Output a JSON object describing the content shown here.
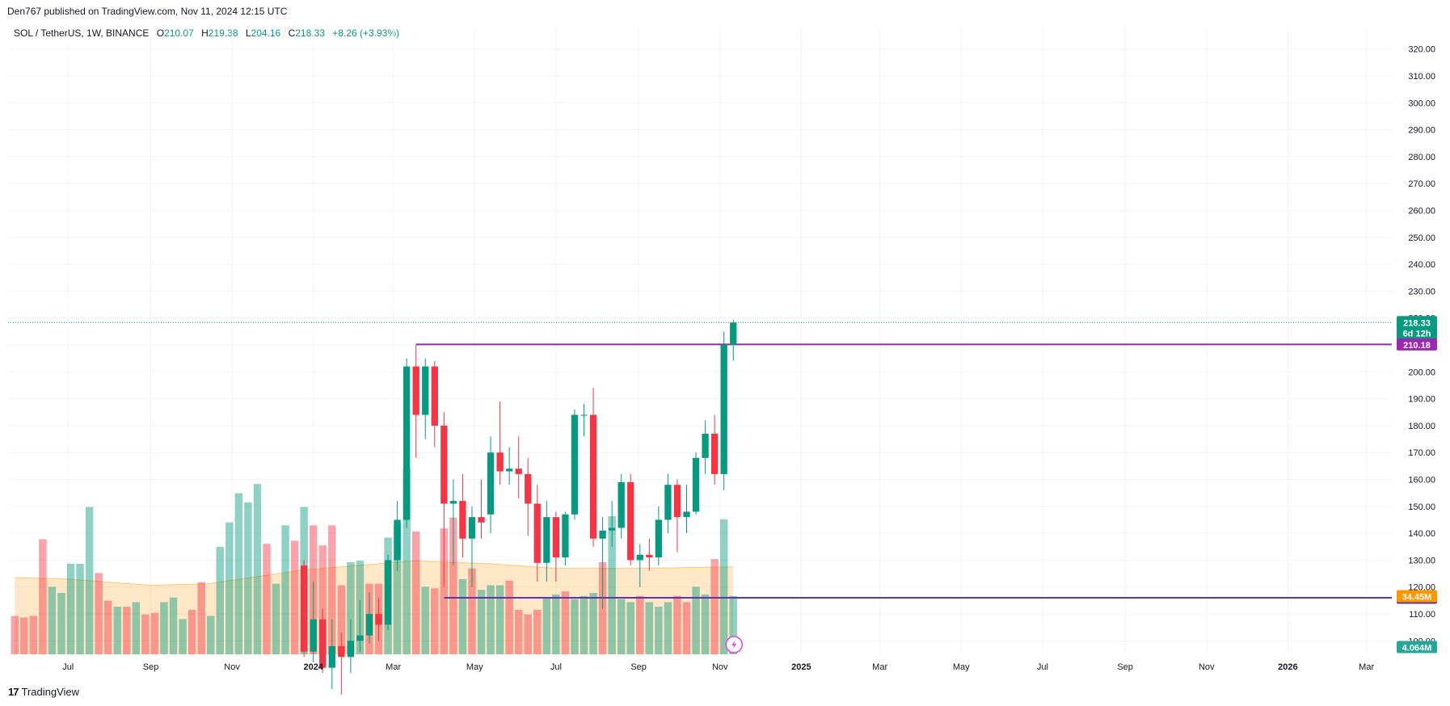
{
  "header": {
    "published": "Den767 published on TradingView.com, Nov 11, 2024 12:15 UTC"
  },
  "legend": {
    "symbol": "SOL / TetherUS, 1W, BINANCE",
    "open_label": "O",
    "open": "210.07",
    "high_label": "H",
    "high": "219.38",
    "low_label": "L",
    "low": "204.16",
    "close_label": "C",
    "close": "218.33",
    "change": "+8.26 (+3.93%)"
  },
  "footer": {
    "brand": "TradingView",
    "logo_glyph": "17"
  },
  "colors": {
    "up": "#089981",
    "down": "#f23645",
    "level_high": "#9c27b0",
    "level_low": "#5e35b1",
    "grid": "#f0f3fa",
    "volume_ma": "#ff9800"
  },
  "chart_data": {
    "type": "candlestick",
    "title": "SOL / TetherUS, 1W, BINANCE",
    "x_ticks": [
      {
        "date": "2023-07-01",
        "label": "Jul",
        "bold": false
      },
      {
        "date": "2023-09-01",
        "label": "Sep",
        "bold": false
      },
      {
        "date": "2023-11-01",
        "label": "Nov",
        "bold": false
      },
      {
        "date": "2024-01-01",
        "label": "2024",
        "bold": true
      },
      {
        "date": "2024-03-01",
        "label": "Mar",
        "bold": false
      },
      {
        "date": "2024-05-01",
        "label": "May",
        "bold": false
      },
      {
        "date": "2024-07-01",
        "label": "Jul",
        "bold": false
      },
      {
        "date": "2024-09-01",
        "label": "Sep",
        "bold": false
      },
      {
        "date": "2024-11-01",
        "label": "Nov",
        "bold": false
      },
      {
        "date": "2025-01-01",
        "label": "2025",
        "bold": true
      },
      {
        "date": "2025-03-01",
        "label": "Mar",
        "bold": false
      },
      {
        "date": "2025-05-01",
        "label": "May",
        "bold": false
      },
      {
        "date": "2025-07-01",
        "label": "Jul",
        "bold": false
      },
      {
        "date": "2025-09-01",
        "label": "Sep",
        "bold": false
      },
      {
        "date": "2025-11-01",
        "label": "Nov",
        "bold": false
      },
      {
        "date": "2026-01-01",
        "label": "2026",
        "bold": true
      },
      {
        "date": "2026-03-01",
        "label": "Mar",
        "bold": false
      }
    ],
    "y_ticks": [
      "100.00",
      "110.00",
      "120.00",
      "130.00",
      "140.00",
      "150.00",
      "160.00",
      "170.00",
      "180.00",
      "190.00",
      "200.00",
      "210.00",
      "220.00",
      "230.00",
      "240.00",
      "250.00",
      "260.00",
      "270.00",
      "280.00",
      "290.00",
      "300.00",
      "310.00",
      "320.00"
    ],
    "ylim": [
      95,
      325
    ],
    "xlim": [
      "2023-05-17",
      "2026-03-20"
    ],
    "candles": [
      {
        "d": "2023-12-25",
        "o": 128,
        "h": 130,
        "l": 94,
        "c": 96
      },
      {
        "d": "2024-01-01",
        "o": 96,
        "h": 122,
        "l": 92,
        "c": 108
      },
      {
        "d": "2024-01-08",
        "o": 108,
        "h": 112,
        "l": 88,
        "c": 90
      },
      {
        "d": "2024-01-15",
        "o": 90,
        "h": 108,
        "l": 82,
        "c": 98
      },
      {
        "d": "2024-01-22",
        "o": 98,
        "h": 103,
        "l": 80,
        "c": 94
      },
      {
        "d": "2024-01-29",
        "o": 94,
        "h": 108,
        "l": 88,
        "c": 100
      },
      {
        "d": "2024-02-05",
        "o": 100,
        "h": 115,
        "l": 96,
        "c": 102
      },
      {
        "d": "2024-02-12",
        "o": 102,
        "h": 118,
        "l": 99,
        "c": 110
      },
      {
        "d": "2024-02-19",
        "o": 110,
        "h": 116,
        "l": 100,
        "c": 106
      },
      {
        "d": "2024-02-26",
        "o": 106,
        "h": 132,
        "l": 104,
        "c": 130
      },
      {
        "d": "2024-03-04",
        "o": 130,
        "h": 152,
        "l": 126,
        "c": 145
      },
      {
        "d": "2024-03-11",
        "o": 145,
        "h": 205,
        "l": 142,
        "c": 202
      },
      {
        "d": "2024-03-18",
        "o": 202,
        "h": 210,
        "l": 168,
        "c": 184
      },
      {
        "d": "2024-03-25",
        "o": 184,
        "h": 205,
        "l": 175,
        "c": 202
      },
      {
        "d": "2024-04-01",
        "o": 202,
        "h": 204,
        "l": 172,
        "c": 180
      },
      {
        "d": "2024-04-08",
        "o": 180,
        "h": 185,
        "l": 120,
        "c": 151
      },
      {
        "d": "2024-04-15",
        "o": 151,
        "h": 160,
        "l": 128,
        "c": 152
      },
      {
        "d": "2024-04-22",
        "o": 152,
        "h": 162,
        "l": 131,
        "c": 138
      },
      {
        "d": "2024-04-29",
        "o": 138,
        "h": 150,
        "l": 120,
        "c": 146
      },
      {
        "d": "2024-05-06",
        "o": 146,
        "h": 160,
        "l": 138,
        "c": 144
      },
      {
        "d": "2024-05-13",
        "o": 147,
        "h": 176,
        "l": 140,
        "c": 170
      },
      {
        "d": "2024-05-20",
        "o": 170,
        "h": 189,
        "l": 158,
        "c": 163
      },
      {
        "d": "2024-05-27",
        "o": 163,
        "h": 172,
        "l": 158,
        "c": 164
      },
      {
        "d": "2024-06-03",
        "o": 164,
        "h": 176,
        "l": 153,
        "c": 162
      },
      {
        "d": "2024-06-10",
        "o": 162,
        "h": 168,
        "l": 139,
        "c": 151
      },
      {
        "d": "2024-06-17",
        "o": 151,
        "h": 158,
        "l": 122,
        "c": 129
      },
      {
        "d": "2024-06-24",
        "o": 129,
        "h": 152,
        "l": 122,
        "c": 146
      },
      {
        "d": "2024-07-01",
        "o": 146,
        "h": 148,
        "l": 122,
        "c": 131
      },
      {
        "d": "2024-07-08",
        "o": 131,
        "h": 148,
        "l": 128,
        "c": 147
      },
      {
        "d": "2024-07-15",
        "o": 147,
        "h": 186,
        "l": 145,
        "c": 184
      },
      {
        "d": "2024-07-22",
        "o": 184,
        "h": 188,
        "l": 176,
        "c": 184
      },
      {
        "d": "2024-07-29",
        "o": 184,
        "h": 194,
        "l": 135,
        "c": 138
      },
      {
        "d": "2024-08-05",
        "o": 138,
        "h": 146,
        "l": 112,
        "c": 141
      },
      {
        "d": "2024-08-12",
        "o": 141,
        "h": 152,
        "l": 135,
        "c": 142
      },
      {
        "d": "2024-08-19",
        "o": 142,
        "h": 162,
        "l": 138,
        "c": 159
      },
      {
        "d": "2024-08-26",
        "o": 159,
        "h": 162,
        "l": 128,
        "c": 130
      },
      {
        "d": "2024-09-02",
        "o": 130,
        "h": 136,
        "l": 120,
        "c": 132
      },
      {
        "d": "2024-09-09",
        "o": 132,
        "h": 138,
        "l": 126,
        "c": 131
      },
      {
        "d": "2024-09-16",
        "o": 131,
        "h": 150,
        "l": 128,
        "c": 145
      },
      {
        "d": "2024-09-23",
        "o": 145,
        "h": 162,
        "l": 140,
        "c": 158
      },
      {
        "d": "2024-09-30",
        "o": 158,
        "h": 160,
        "l": 133,
        "c": 146
      },
      {
        "d": "2024-10-07",
        "o": 146,
        "h": 158,
        "l": 140,
        "c": 148
      },
      {
        "d": "2024-10-14",
        "o": 148,
        "h": 170,
        "l": 147,
        "c": 168
      },
      {
        "d": "2024-10-21",
        "o": 168,
        "h": 182,
        "l": 162,
        "c": 177
      },
      {
        "d": "2024-10-28",
        "o": 177,
        "h": 184,
        "l": 158,
        "c": 162
      },
      {
        "d": "2024-11-04",
        "o": 162,
        "h": 215,
        "l": 156,
        "c": 210.07
      },
      {
        "d": "2024-11-11",
        "o": 210.07,
        "h": 219.38,
        "l": 204.16,
        "c": 218.33
      }
    ],
    "volume_ma_levels": [
      {
        "d": "2023-05-22",
        "v": 0.5
      },
      {
        "d": "2023-07-01",
        "v": 0.49
      },
      {
        "d": "2023-09-01",
        "v": 0.45
      },
      {
        "d": "2023-10-15",
        "v": 0.46
      },
      {
        "d": "2023-11-15",
        "v": 0.5
      },
      {
        "d": "2023-12-25",
        "v": 0.55
      },
      {
        "d": "2024-02-05",
        "v": 0.58
      },
      {
        "d": "2024-03-18",
        "v": 0.61
      },
      {
        "d": "2024-04-08",
        "v": 0.6
      },
      {
        "d": "2024-05-13",
        "v": 0.59
      },
      {
        "d": "2024-07-01",
        "v": 0.56
      },
      {
        "d": "2024-09-02",
        "v": 0.56
      },
      {
        "d": "2024-11-11",
        "v": 0.57
      }
    ],
    "volume_levels": [
      {
        "d": "2023-05-22",
        "v": 0.25,
        "up": false
      },
      {
        "d": "2023-05-29",
        "v": 0.24,
        "up": false
      },
      {
        "d": "2023-06-05",
        "v": 0.25,
        "up": false
      },
      {
        "d": "2023-06-12",
        "v": 0.75,
        "up": false
      },
      {
        "d": "2023-06-19",
        "v": 0.44,
        "up": true
      },
      {
        "d": "2023-06-26",
        "v": 0.4,
        "up": true
      },
      {
        "d": "2023-07-03",
        "v": 0.59,
        "up": true
      },
      {
        "d": "2023-07-10",
        "v": 0.59,
        "up": true
      },
      {
        "d": "2023-07-17",
        "v": 0.96,
        "up": true
      },
      {
        "d": "2023-07-24",
        "v": 0.53,
        "up": false
      },
      {
        "d": "2023-07-31",
        "v": 0.35,
        "up": false
      },
      {
        "d": "2023-08-07",
        "v": 0.31,
        "up": true
      },
      {
        "d": "2023-08-14",
        "v": 0.31,
        "up": false
      },
      {
        "d": "2023-08-21",
        "v": 0.34,
        "up": true
      },
      {
        "d": "2023-08-28",
        "v": 0.26,
        "up": false
      },
      {
        "d": "2023-09-04",
        "v": 0.27,
        "up": false
      },
      {
        "d": "2023-09-11",
        "v": 0.34,
        "up": true
      },
      {
        "d": "2023-09-18",
        "v": 0.37,
        "up": true
      },
      {
        "d": "2023-09-25",
        "v": 0.23,
        "up": true
      },
      {
        "d": "2023-10-02",
        "v": 0.29,
        "up": false
      },
      {
        "d": "2023-10-09",
        "v": 0.47,
        "up": false
      },
      {
        "d": "2023-10-16",
        "v": 0.25,
        "up": true
      },
      {
        "d": "2023-10-23",
        "v": 0.7,
        "up": true
      },
      {
        "d": "2023-10-30",
        "v": 0.86,
        "up": true
      },
      {
        "d": "2023-11-06",
        "v": 1.05,
        "up": true
      },
      {
        "d": "2023-11-13",
        "v": 0.99,
        "up": true
      },
      {
        "d": "2023-11-20",
        "v": 1.11,
        "up": true
      },
      {
        "d": "2023-11-27",
        "v": 0.72,
        "up": false
      },
      {
        "d": "2023-12-04",
        "v": 0.46,
        "up": true
      },
      {
        "d": "2023-12-11",
        "v": 0.84,
        "up": true
      },
      {
        "d": "2023-12-18",
        "v": 0.74,
        "up": false
      },
      {
        "d": "2023-12-25",
        "v": 0.96,
        "up": true
      },
      {
        "d": "2024-01-01",
        "v": 0.84,
        "up": false
      },
      {
        "d": "2024-01-08",
        "v": 0.71,
        "up": false
      },
      {
        "d": "2024-01-15",
        "v": 0.84,
        "up": false
      },
      {
        "d": "2024-01-22",
        "v": 0.45,
        "up": false
      },
      {
        "d": "2024-01-29",
        "v": 0.6,
        "up": true
      },
      {
        "d": "2024-02-05",
        "v": 0.61,
        "up": true
      },
      {
        "d": "2024-02-12",
        "v": 0.46,
        "up": false
      },
      {
        "d": "2024-02-19",
        "v": 0.46,
        "up": false
      },
      {
        "d": "2024-02-26",
        "v": 0.76,
        "up": true
      },
      {
        "d": "2024-03-04",
        "v": 0.85,
        "up": true
      },
      {
        "d": "2024-03-11",
        "v": 1.21,
        "up": true
      },
      {
        "d": "2024-03-18",
        "v": 0.8,
        "up": false
      },
      {
        "d": "2024-03-25",
        "v": 0.44,
        "up": true
      },
      {
        "d": "2024-04-01",
        "v": 0.43,
        "up": false
      },
      {
        "d": "2024-04-08",
        "v": 0.82,
        "up": false
      },
      {
        "d": "2024-04-15",
        "v": 0.89,
        "up": false
      },
      {
        "d": "2024-04-22",
        "v": 0.49,
        "up": true
      },
      {
        "d": "2024-04-29",
        "v": 0.56,
        "up": false
      },
      {
        "d": "2024-05-06",
        "v": 0.42,
        "up": true
      },
      {
        "d": "2024-05-13",
        "v": 0.45,
        "up": true
      },
      {
        "d": "2024-05-20",
        "v": 0.45,
        "up": true
      },
      {
        "d": "2024-05-27",
        "v": 0.48,
        "up": false
      },
      {
        "d": "2024-06-03",
        "v": 0.29,
        "up": false
      },
      {
        "d": "2024-06-10",
        "v": 0.26,
        "up": false
      },
      {
        "d": "2024-06-17",
        "v": 0.29,
        "up": false
      },
      {
        "d": "2024-06-24",
        "v": 0.37,
        "up": true
      },
      {
        "d": "2024-07-01",
        "v": 0.39,
        "up": true
      },
      {
        "d": "2024-07-08",
        "v": 0.41,
        "up": false
      },
      {
        "d": "2024-07-15",
        "v": 0.36,
        "up": true
      },
      {
        "d": "2024-07-22",
        "v": 0.38,
        "up": true
      },
      {
        "d": "2024-07-29",
        "v": 0.4,
        "up": true
      },
      {
        "d": "2024-08-05",
        "v": 0.6,
        "up": false
      },
      {
        "d": "2024-08-12",
        "v": 0.9,
        "up": true
      },
      {
        "d": "2024-08-19",
        "v": 0.36,
        "up": true
      },
      {
        "d": "2024-08-26",
        "v": 0.34,
        "up": true
      },
      {
        "d": "2024-09-02",
        "v": 0.38,
        "up": false
      },
      {
        "d": "2024-09-09",
        "v": 0.34,
        "up": true
      },
      {
        "d": "2024-09-16",
        "v": 0.31,
        "up": true
      },
      {
        "d": "2024-09-23",
        "v": 0.34,
        "up": true
      },
      {
        "d": "2024-09-30",
        "v": 0.38,
        "up": false
      },
      {
        "d": "2024-10-07",
        "v": 0.34,
        "up": false
      },
      {
        "d": "2024-10-14",
        "v": 0.44,
        "up": true
      },
      {
        "d": "2024-10-21",
        "v": 0.39,
        "up": true
      },
      {
        "d": "2024-10-28",
        "v": 0.62,
        "up": false
      },
      {
        "d": "2024-11-04",
        "v": 0.88,
        "up": true
      },
      {
        "d": "2024-11-11",
        "v": 0.38,
        "up": true
      }
    ],
    "levels": [
      {
        "value": 210.18,
        "label": "210.18",
        "color": "#9c27b0",
        "start": "2024-03-18"
      },
      {
        "value": 116.0,
        "label": "116.00",
        "color": "#5e35b1",
        "start": "2024-04-08"
      }
    ],
    "last_price": {
      "value": 218.33,
      "label": "218.33",
      "countdown": "6d 12h",
      "color": "#089981"
    },
    "volume_ma_badge": {
      "label": "34.45M",
      "color": "#ff9800"
    },
    "volume_badge": {
      "label": "4.064M",
      "color": "#26a69a"
    }
  }
}
